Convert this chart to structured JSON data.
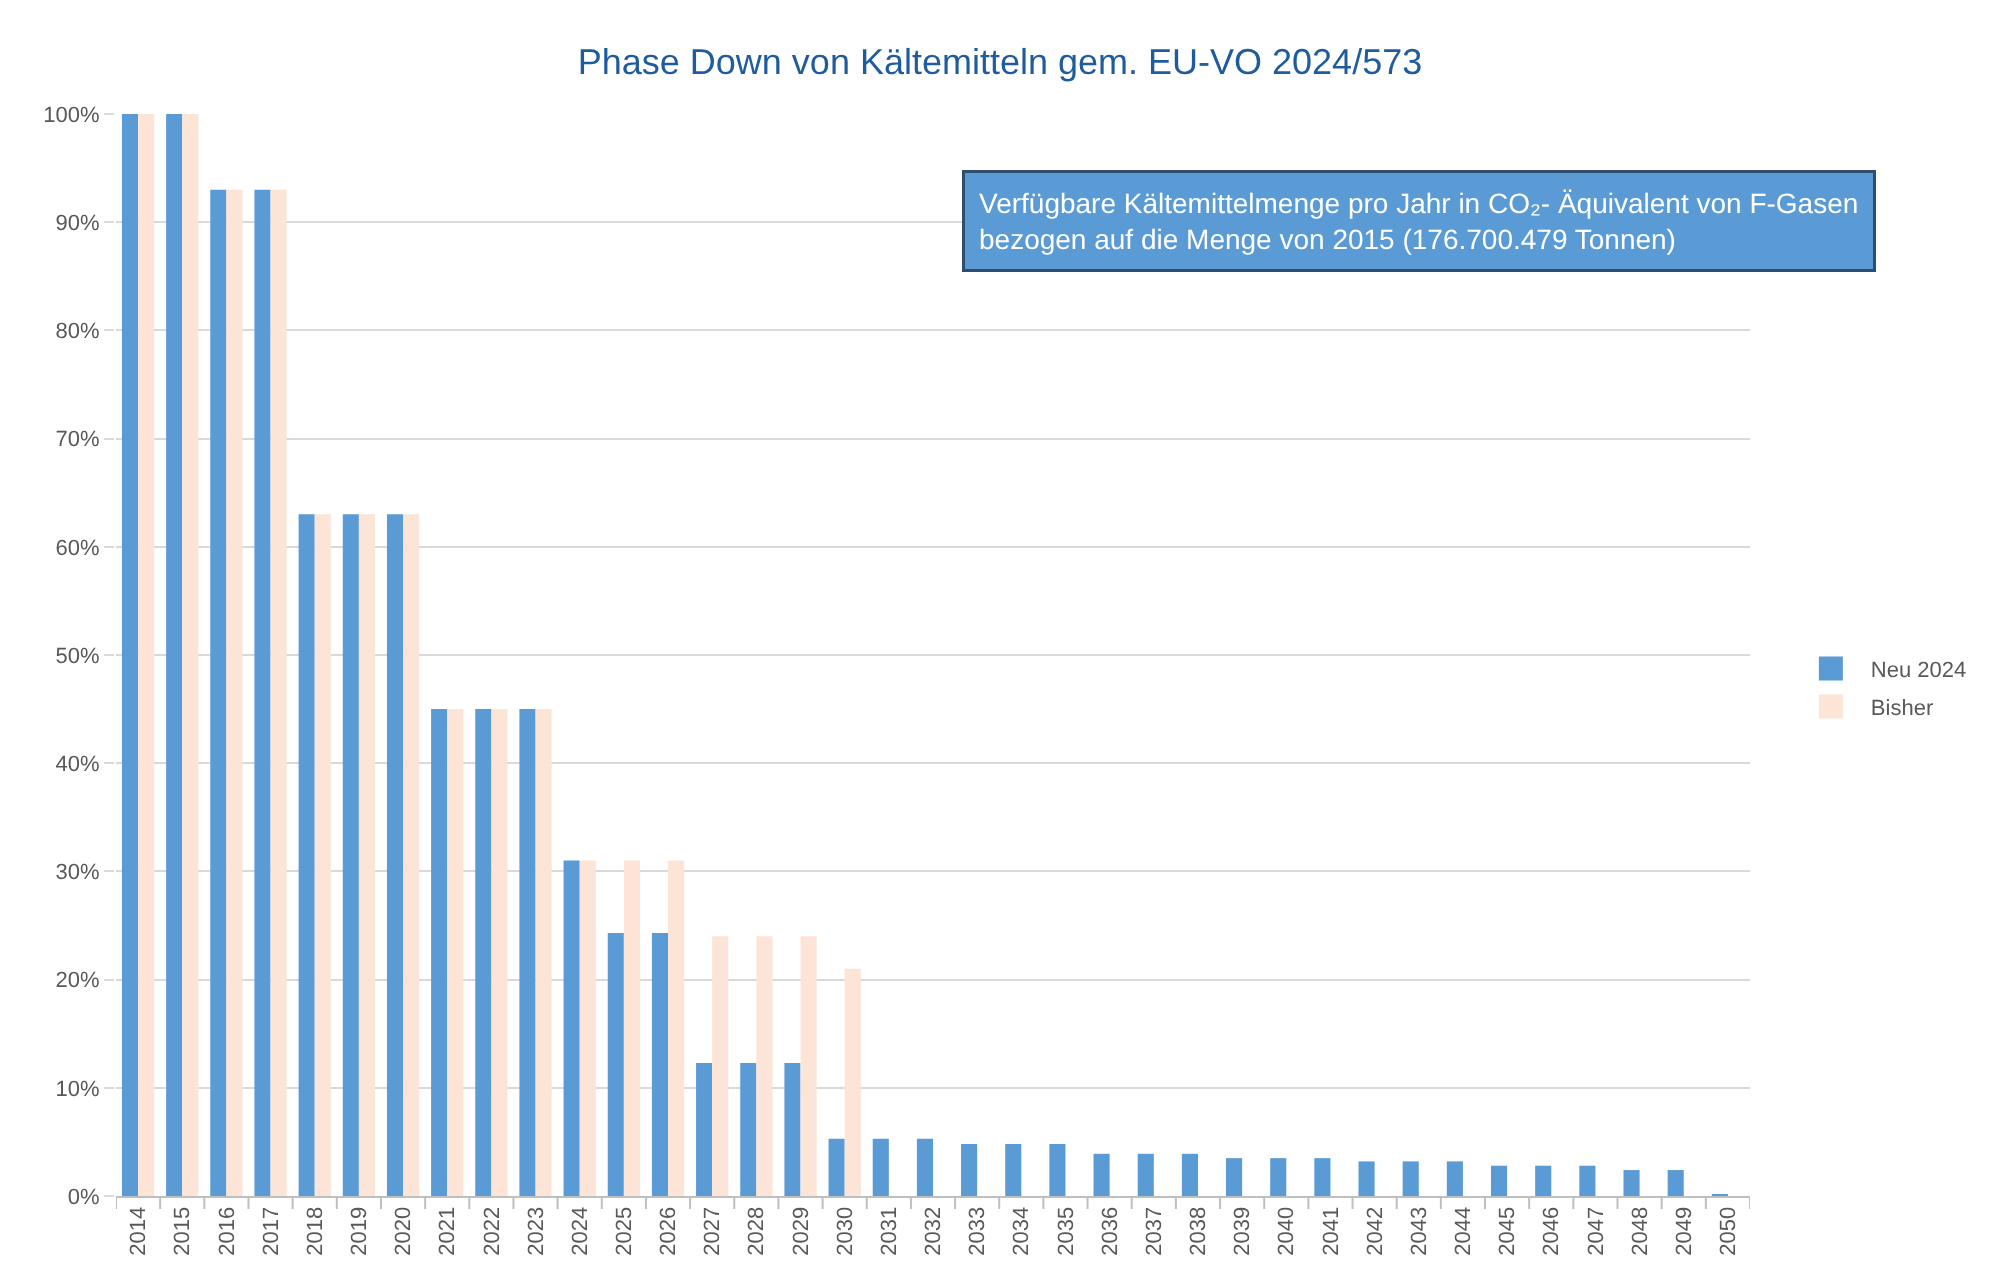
{
  "chart_data": {
    "type": "bar",
    "title": "Phase Down von Kältemitteln gem. EU-VO 2024/573",
    "annotations": [
      "Verfügbare Kältemittelmenge pro Jahr in CO₂- Äquivalent von F-Gasen\nbezogen auf die Menge von 2015 (176.700.479 Tonnen)"
    ],
    "categories": [
      "2014",
      "2015",
      "2016",
      "2017",
      "2018",
      "2019",
      "2020",
      "2021",
      "2022",
      "2023",
      "2024",
      "2025",
      "2026",
      "2027",
      "2028",
      "2029",
      "2030",
      "2031",
      "2032",
      "2033",
      "2034",
      "2035",
      "2036",
      "2037",
      "2038",
      "2039",
      "2040",
      "2041",
      "2042",
      "2043",
      "2044",
      "2045",
      "2046",
      "2047",
      "2048",
      "2049",
      "2050"
    ],
    "series": [
      {
        "name": "Neu 2024",
        "color": "#5b9bd5",
        "values": [
          100,
          100,
          93,
          93,
          63,
          63,
          63,
          45,
          45,
          45,
          31,
          24.3,
          24.3,
          12.3,
          12.3,
          12.3,
          5.3,
          5.3,
          5.3,
          4.8,
          4.8,
          4.8,
          3.9,
          3.9,
          3.9,
          3.5,
          3.5,
          3.5,
          3.2,
          3.2,
          3.2,
          2.8,
          2.8,
          2.8,
          2.4,
          2.4,
          0.1
        ]
      },
      {
        "name": "Bisher",
        "color": "#fce4d6",
        "values": [
          100,
          100,
          93,
          93,
          63,
          63,
          63,
          45,
          45,
          45,
          31,
          31,
          31,
          24,
          24,
          24,
          21,
          0,
          0,
          0,
          0,
          0,
          0,
          0,
          0,
          0,
          0,
          0,
          0,
          0,
          0,
          0,
          0,
          0,
          0,
          0,
          0
        ]
      }
    ],
    "ylim": [
      0,
      100
    ],
    "yticks": [
      {
        "value": 0,
        "label": "0%"
      },
      {
        "value": 10,
        "label": "10%"
      },
      {
        "value": 20,
        "label": "20%"
      },
      {
        "value": 30,
        "label": "30%"
      },
      {
        "value": 40,
        "label": "40%"
      },
      {
        "value": 50,
        "label": "50%"
      },
      {
        "value": 60,
        "label": "60%"
      },
      {
        "value": 70,
        "label": "70%"
      },
      {
        "value": 80,
        "label": "80%"
      },
      {
        "value": 90,
        "label": "90%"
      },
      {
        "value": 100,
        "label": "100%"
      }
    ],
    "grid": "y",
    "legend": "right"
  }
}
